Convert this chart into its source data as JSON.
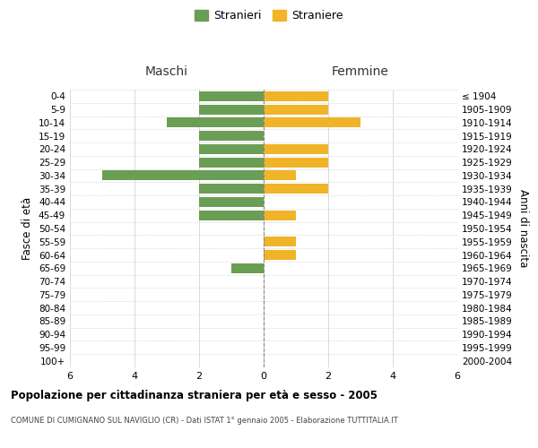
{
  "age_groups": [
    "0-4",
    "5-9",
    "10-14",
    "15-19",
    "20-24",
    "25-29",
    "30-34",
    "35-39",
    "40-44",
    "45-49",
    "50-54",
    "55-59",
    "60-64",
    "65-69",
    "70-74",
    "75-79",
    "80-84",
    "85-89",
    "90-94",
    "95-99",
    "100+"
  ],
  "birth_years": [
    "2000-2004",
    "1995-1999",
    "1990-1994",
    "1985-1989",
    "1980-1984",
    "1975-1979",
    "1970-1974",
    "1965-1969",
    "1960-1964",
    "1955-1959",
    "1950-1954",
    "1945-1949",
    "1940-1944",
    "1935-1939",
    "1930-1934",
    "1925-1929",
    "1920-1924",
    "1915-1919",
    "1910-1914",
    "1905-1909",
    "≤ 1904"
  ],
  "males": [
    2,
    2,
    3,
    2,
    2,
    2,
    5,
    2,
    2,
    2,
    0,
    0,
    0,
    1,
    0,
    0,
    0,
    0,
    0,
    0,
    0
  ],
  "females": [
    2,
    2,
    3,
    0,
    2,
    2,
    1,
    2,
    0,
    1,
    0,
    1,
    1,
    0,
    0,
    0,
    0,
    0,
    0,
    0,
    0
  ],
  "male_color": "#6a9e55",
  "female_color": "#f0b429",
  "grid_color": "#cccccc",
  "center_line_color": "#888888",
  "title": "Popolazione per cittadinanza straniera per età e sesso - 2005",
  "subtitle": "COMUNE DI CUMIGNANO SUL NAVIGLIO (CR) - Dati ISTAT 1° gennaio 2005 - Elaborazione TUTTITALIA.IT",
  "xlabel_left": "Maschi",
  "xlabel_right": "Femmine",
  "ylabel_left": "Fasce di età",
  "ylabel_right": "Anni di nascita",
  "legend_male": "Stranieri",
  "legend_female": "Straniere",
  "xlim": 6,
  "background_color": "#ffffff"
}
